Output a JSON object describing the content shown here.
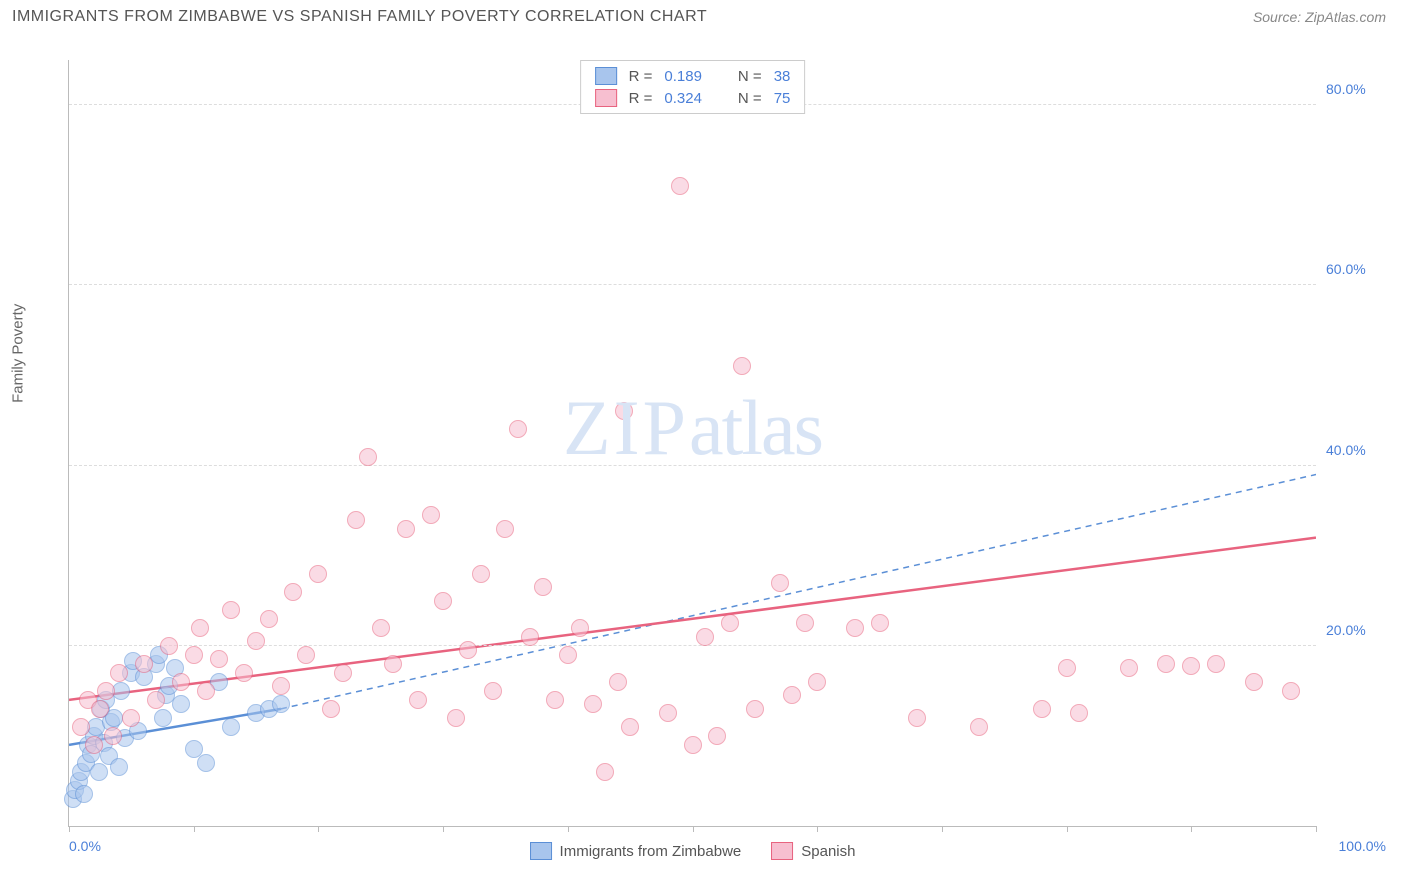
{
  "header": {
    "title": "IMMIGRANTS FROM ZIMBABWE VS SPANISH FAMILY POVERTY CORRELATION CHART",
    "source_label": "Source:",
    "source_value": "ZipAtlas.com"
  },
  "chart": {
    "type": "scatter",
    "ylabel": "Family Poverty",
    "xlim": [
      0,
      100
    ],
    "ylim": [
      0,
      85
    ],
    "yticks": [
      20,
      40,
      60,
      80
    ],
    "ytick_labels": [
      "20.0%",
      "40.0%",
      "60.0%",
      "80.0%"
    ],
    "xtick_positions": [
      0,
      10,
      20,
      30,
      40,
      50,
      60,
      70,
      80,
      90,
      100
    ],
    "xtick_labels": {
      "left": "0.0%",
      "right": "100.0%"
    },
    "background_color": "#ffffff",
    "grid_color": "#dddddd",
    "axis_color": "#bbbbbb",
    "marker_radius": 9,
    "watermark_zip": "ZIP",
    "watermark_atlas": "atlas",
    "series": [
      {
        "name": "Immigrants from Zimbabwe",
        "fill_color": "#a8c5ed",
        "stroke_color": "#5b8fd6",
        "fill_opacity": 0.55,
        "trend": {
          "x1": 0,
          "y1": 9,
          "x2": 17,
          "y2": 13,
          "dash": false,
          "width": 2.5,
          "extend_dash": {
            "x2": 100,
            "y2": 39
          }
        },
        "points": [
          [
            0.3,
            3
          ],
          [
            0.5,
            4
          ],
          [
            0.8,
            5
          ],
          [
            1,
            6
          ],
          [
            1.2,
            3.5
          ],
          [
            1.4,
            7
          ],
          [
            1.5,
            9
          ],
          [
            1.8,
            8
          ],
          [
            2,
            10
          ],
          [
            2.2,
            11
          ],
          [
            2.4,
            6
          ],
          [
            2.6,
            13
          ],
          [
            2.8,
            9.2
          ],
          [
            3,
            14
          ],
          [
            3.2,
            7.8
          ],
          [
            3.4,
            11.5
          ],
          [
            3.6,
            12
          ],
          [
            4,
            6.5
          ],
          [
            4.2,
            15
          ],
          [
            4.5,
            9.8
          ],
          [
            5,
            17
          ],
          [
            5.1,
            18.3
          ],
          [
            5.5,
            10.5
          ],
          [
            6,
            16.5
          ],
          [
            7,
            18
          ],
          [
            7.2,
            19
          ],
          [
            7.5,
            12
          ],
          [
            7.8,
            14.5
          ],
          [
            8,
            15.5
          ],
          [
            8.5,
            17.5
          ],
          [
            9,
            13.5
          ],
          [
            10,
            8.5
          ],
          [
            11,
            7
          ],
          [
            12,
            16
          ],
          [
            13,
            11
          ],
          [
            15,
            12.5
          ],
          [
            16,
            13
          ],
          [
            17,
            13.5
          ]
        ]
      },
      {
        "name": "Spanish",
        "fill_color": "#f7bfd0",
        "stroke_color": "#e8637f",
        "fill_opacity": 0.55,
        "trend": {
          "x1": 0,
          "y1": 14,
          "x2": 100,
          "y2": 32,
          "dash": false,
          "width": 2.5
        },
        "points": [
          [
            1,
            11
          ],
          [
            1.5,
            14
          ],
          [
            2,
            9
          ],
          [
            2.5,
            13
          ],
          [
            3,
            15
          ],
          [
            3.5,
            10
          ],
          [
            4,
            17
          ],
          [
            5,
            12
          ],
          [
            6,
            18
          ],
          [
            7,
            14
          ],
          [
            8,
            20
          ],
          [
            9,
            16
          ],
          [
            10,
            19
          ],
          [
            10.5,
            22
          ],
          [
            11,
            15
          ],
          [
            12,
            18.5
          ],
          [
            13,
            24
          ],
          [
            14,
            17
          ],
          [
            15,
            20.5
          ],
          [
            16,
            23
          ],
          [
            17,
            15.5
          ],
          [
            18,
            26
          ],
          [
            19,
            19
          ],
          [
            20,
            28
          ],
          [
            21,
            13
          ],
          [
            22,
            17
          ],
          [
            23,
            34
          ],
          [
            24,
            41
          ],
          [
            25,
            22
          ],
          [
            26,
            18
          ],
          [
            27,
            33
          ],
          [
            28,
            14
          ],
          [
            29,
            34.5
          ],
          [
            30,
            25
          ],
          [
            31,
            12
          ],
          [
            32,
            19.5
          ],
          [
            33,
            28
          ],
          [
            34,
            15
          ],
          [
            35,
            33
          ],
          [
            36,
            44
          ],
          [
            37,
            21
          ],
          [
            38,
            26.5
          ],
          [
            39,
            14
          ],
          [
            40,
            19
          ],
          [
            41,
            22
          ],
          [
            42,
            13.5
          ],
          [
            43,
            6
          ],
          [
            44,
            16
          ],
          [
            44.5,
            46
          ],
          [
            45,
            11
          ],
          [
            48,
            12.5
          ],
          [
            49,
            71
          ],
          [
            50,
            9
          ],
          [
            51,
            21
          ],
          [
            52,
            10
          ],
          [
            53,
            22.5
          ],
          [
            54,
            51
          ],
          [
            55,
            13
          ],
          [
            57,
            27
          ],
          [
            58,
            14.5
          ],
          [
            59,
            22.5
          ],
          [
            60,
            16
          ],
          [
            63,
            22
          ],
          [
            65,
            22.5
          ],
          [
            68,
            12
          ],
          [
            73,
            11
          ],
          [
            78,
            13
          ],
          [
            80,
            17.5
          ],
          [
            81,
            12.5
          ],
          [
            85,
            17.5
          ],
          [
            88,
            18
          ],
          [
            90,
            17.8
          ],
          [
            92,
            18
          ],
          [
            95,
            16
          ],
          [
            98,
            15
          ]
        ]
      }
    ],
    "legend_top": [
      {
        "swatch_fill": "#a8c5ed",
        "swatch_stroke": "#5b8fd6",
        "r_label": "R =",
        "r_val": "0.189",
        "n_label": "N =",
        "n_val": "38"
      },
      {
        "swatch_fill": "#f7bfd0",
        "swatch_stroke": "#e8637f",
        "r_label": "R =",
        "r_val": "0.324",
        "n_label": "N =",
        "n_val": "75"
      }
    ],
    "legend_bottom": [
      {
        "swatch_fill": "#a8c5ed",
        "swatch_stroke": "#5b8fd6",
        "label": "Immigrants from Zimbabwe"
      },
      {
        "swatch_fill": "#f7bfd0",
        "swatch_stroke": "#e8637f",
        "label": "Spanish"
      }
    ]
  }
}
